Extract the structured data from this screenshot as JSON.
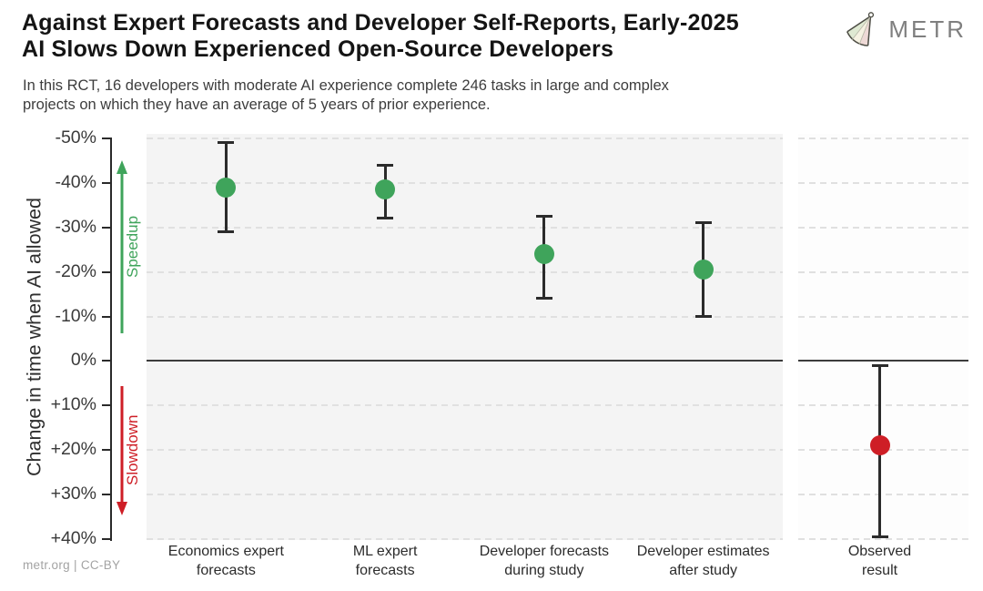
{
  "header": {
    "title": "Against Expert Forecasts and Developer Self-Reports, Early-2025\nAI Slows Down Experienced Open-Source Developers",
    "subtitle": "In this RCT, 16 developers with moderate AI experience complete 246 tasks in large and complex\nprojects on which they have an average of 5 years of prior experience.",
    "logo_text": "METR"
  },
  "footer": {
    "credit": "metr.org | CC-BY"
  },
  "colors": {
    "speedup_green": "#3fa45b",
    "slowdown_red": "#ce1e26",
    "errorbar": "#2b2b2b",
    "main_panel_bg": "#f4f4f4",
    "observed_panel_bg": "#fdfdfd",
    "grid": "#e0e0e0",
    "zero_line": "#3c3c3c"
  },
  "chart_data": {
    "type": "scatter",
    "subtype": "dot-with-error-bars",
    "title": "Against Expert Forecasts and Developer Self-Reports, Early-2025 AI Slows Down Experienced Open-Source Developers",
    "ylabel": "Change in time when AI allowed",
    "ylim": [
      -50,
      40
    ],
    "y_axis_inverted": true,
    "grid": true,
    "ytick_values": [
      -50,
      -40,
      -30,
      -20,
      -10,
      0,
      10,
      20,
      30,
      40
    ],
    "ytick_labels": [
      "-50%",
      "-40%",
      "-30%",
      "-20%",
      "-10%",
      "0%",
      "+10%",
      "+20%",
      "+30%",
      "+40%"
    ],
    "annotations": {
      "speedup": "Speedup",
      "slowdown": "Slowdown"
    },
    "series": [
      {
        "category": "Economics expert\nforecasts",
        "value": -39,
        "ci_low": -49,
        "ci_high": -29,
        "color_key": "speedup_green"
      },
      {
        "category": "ML expert\nforecasts",
        "value": -38.5,
        "ci_low": -44,
        "ci_high": -32,
        "color_key": "speedup_green"
      },
      {
        "category": "Developer forecasts\nduring study",
        "value": -24,
        "ci_low": -32.5,
        "ci_high": -14,
        "color_key": "speedup_green"
      },
      {
        "category": "Developer estimates\nafter study",
        "value": -20.5,
        "ci_low": -31,
        "ci_high": -10,
        "color_key": "speedup_green"
      }
    ],
    "observed": {
      "category": "Observed\nresult",
      "value": 19,
      "ci_low": 1,
      "ci_high": 39.5,
      "color_key": "slowdown_red"
    }
  }
}
